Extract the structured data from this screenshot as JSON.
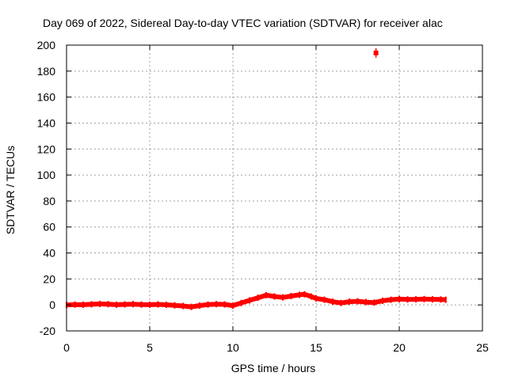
{
  "chart_data": {
    "type": "scatter",
    "title": "Day 069 of 2022, Sidereal Day-to-day VTEC variation (SDTVAR) for receiver alac",
    "xlabel": "GPS time / hours",
    "ylabel": "SDTVAR / TECUs",
    "xlim": [
      0,
      25
    ],
    "ylim": [
      -20,
      200
    ],
    "xticks": [
      0,
      5,
      10,
      15,
      20,
      25
    ],
    "yticks": [
      -20,
      0,
      20,
      40,
      60,
      80,
      100,
      120,
      140,
      160,
      180,
      200
    ],
    "grid": true,
    "series": [
      {
        "name": "SDTVAR",
        "color": "#ff0000",
        "trace": [
          [
            0,
            0
          ],
          [
            0.5,
            0.3
          ],
          [
            1,
            0.2
          ],
          [
            1.5,
            0.5
          ],
          [
            2,
            0.8
          ],
          [
            2.5,
            0.6
          ],
          [
            3,
            0.2
          ],
          [
            3.5,
            0.4
          ],
          [
            4,
            0.6
          ],
          [
            4.5,
            0.3
          ],
          [
            5,
            0.2
          ],
          [
            5.5,
            0.4
          ],
          [
            6,
            0.1
          ],
          [
            6.5,
            -0.3
          ],
          [
            7,
            -0.8
          ],
          [
            7.5,
            -1.5
          ],
          [
            8,
            -0.5
          ],
          [
            8.5,
            0.3
          ],
          [
            9,
            0.6
          ],
          [
            9.5,
            0.4
          ],
          [
            10,
            -0.5
          ],
          [
            10.5,
            1.5
          ],
          [
            11,
            3.5
          ],
          [
            11.5,
            5.5
          ],
          [
            12,
            7.5
          ],
          [
            12.5,
            6.5
          ],
          [
            13,
            5.8
          ],
          [
            13.5,
            6.8
          ],
          [
            14,
            7.8
          ],
          [
            14.3,
            8.2
          ],
          [
            14.7,
            6.5
          ],
          [
            15,
            5
          ],
          [
            15.5,
            4
          ],
          [
            16,
            2.5
          ],
          [
            16.5,
            1.5
          ],
          [
            17,
            2.5
          ],
          [
            17.5,
            2.8
          ],
          [
            18,
            2.2
          ],
          [
            18.5,
            1.8
          ],
          [
            19,
            3.2
          ],
          [
            19.5,
            4
          ],
          [
            20,
            4.5
          ],
          [
            20.5,
            4.2
          ],
          [
            21,
            4.3
          ],
          [
            21.5,
            4.5
          ],
          [
            22,
            4.3
          ],
          [
            22.5,
            4.2
          ],
          [
            22.8,
            4
          ]
        ],
        "outliers": [
          [
            18.6,
            194
          ]
        ]
      }
    ]
  }
}
